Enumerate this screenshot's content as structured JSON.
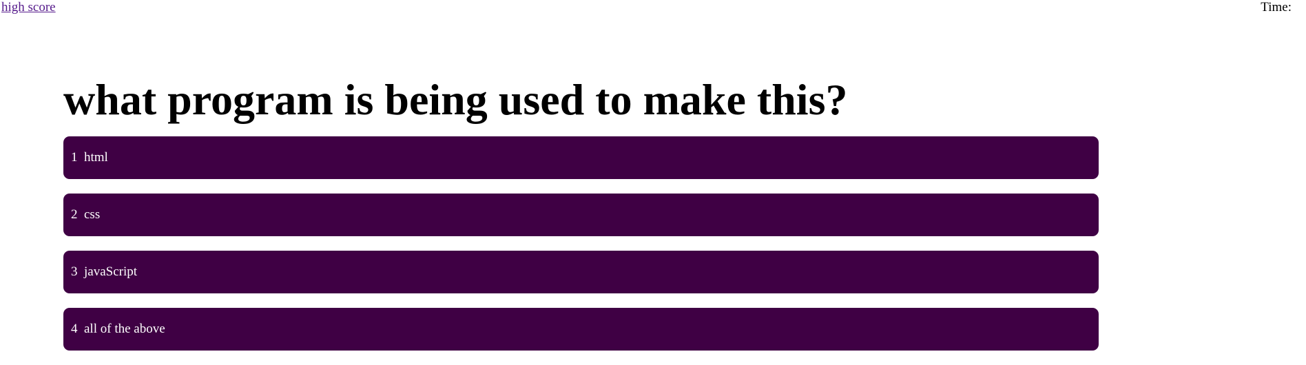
{
  "header": {
    "highscore_link": "high score",
    "timer_label": "Time:",
    "timer_value": ""
  },
  "question": {
    "text": "what program is being used to make this?"
  },
  "choices": [
    {
      "number": "1",
      "label": "html"
    },
    {
      "number": "2",
      "label": "css"
    },
    {
      "number": "3",
      "label": "javaScript"
    },
    {
      "number": "4",
      "label": "all of the above"
    }
  ],
  "colors": {
    "choice_background": "#3f0044",
    "choice_text": "#ffffff",
    "link": "#551a8b"
  }
}
